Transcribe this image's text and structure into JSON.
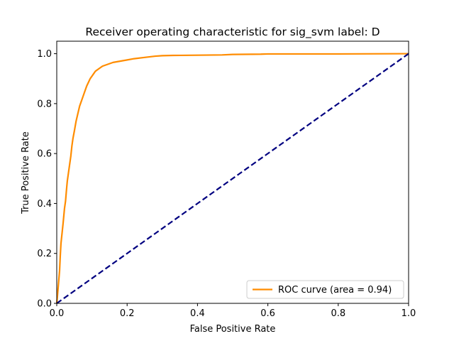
{
  "chart_data": {
    "type": "line",
    "title": "Receiver operating characteristic for sig_svm label: D",
    "xlabel": "False Positive Rate",
    "ylabel": "True Positive Rate",
    "xlim": [
      0.0,
      1.0
    ],
    "ylim": [
      0.0,
      1.05
    ],
    "xticks": [
      "0.0",
      "0.2",
      "0.4",
      "0.6",
      "0.8",
      "1.0"
    ],
    "yticks": [
      "0.0",
      "0.2",
      "0.4",
      "0.6",
      "0.8",
      "1.0"
    ],
    "grid": false,
    "legend_position": "lower-right",
    "series": [
      {
        "name": "ROC curve (area = 0.94)",
        "color": "#ff8c00",
        "style": "solid",
        "x": [
          0.0,
          0.002,
          0.005,
          0.008,
          0.01,
          0.012,
          0.015,
          0.018,
          0.02,
          0.022,
          0.025,
          0.028,
          0.03,
          0.033,
          0.036,
          0.04,
          0.043,
          0.046,
          0.05,
          0.055,
          0.06,
          0.065,
          0.07,
          0.075,
          0.08,
          0.085,
          0.09,
          0.095,
          0.1,
          0.105,
          0.11,
          0.12,
          0.13,
          0.14,
          0.15,
          0.16,
          0.18,
          0.2,
          0.22,
          0.25,
          0.28,
          0.3,
          0.33,
          0.4,
          0.47,
          0.5,
          0.58,
          0.6,
          0.8,
          1.0
        ],
        "y": [
          0.0,
          0.03,
          0.08,
          0.13,
          0.19,
          0.24,
          0.28,
          0.32,
          0.35,
          0.38,
          0.41,
          0.46,
          0.49,
          0.52,
          0.55,
          0.59,
          0.63,
          0.66,
          0.69,
          0.73,
          0.76,
          0.79,
          0.81,
          0.83,
          0.85,
          0.87,
          0.885,
          0.9,
          0.91,
          0.92,
          0.93,
          0.94,
          0.95,
          0.955,
          0.96,
          0.965,
          0.97,
          0.975,
          0.98,
          0.985,
          0.99,
          0.992,
          0.993,
          0.994,
          0.995,
          0.997,
          0.998,
          0.999,
          0.999,
          1.0
        ]
      },
      {
        "name": "",
        "color": "#000080",
        "style": "dashed",
        "x": [
          0.0,
          1.0
        ],
        "y": [
          0.0,
          1.0
        ]
      }
    ]
  }
}
